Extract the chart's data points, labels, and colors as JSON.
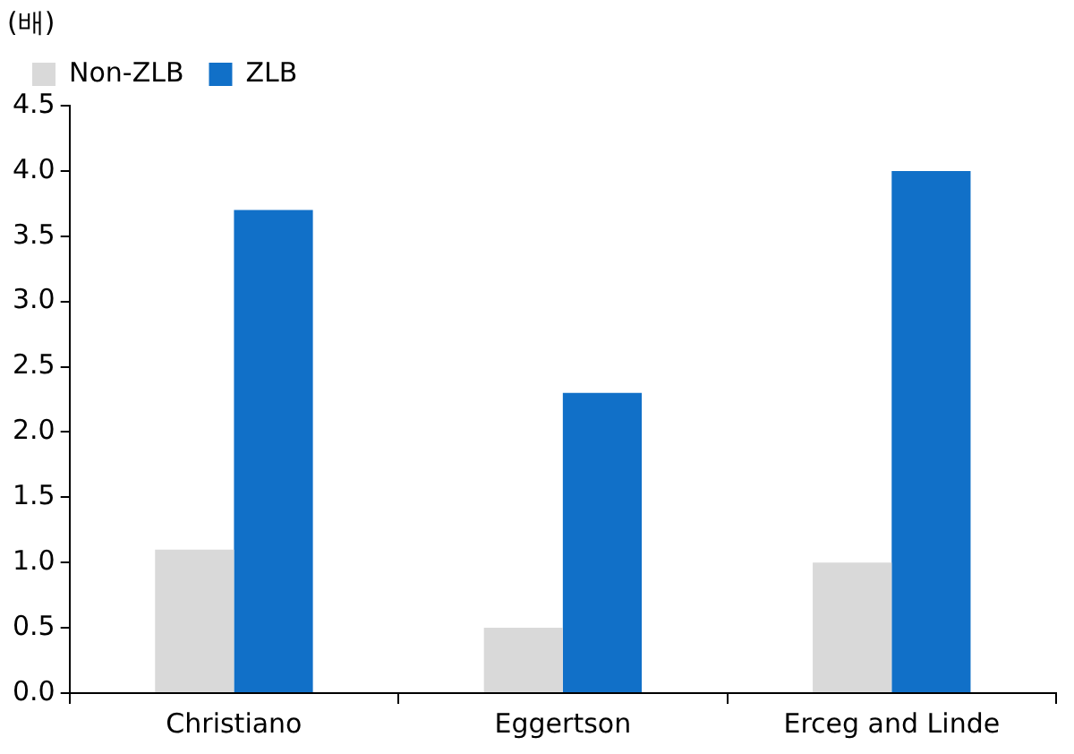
{
  "chart_data": {
    "type": "bar",
    "ylabel": "(배)",
    "categories": [
      "Christiano",
      "Eggertson",
      "Erceg and Linde"
    ],
    "series": [
      {
        "name": "Non-ZLB",
        "color": "#d9d9d9",
        "values": [
          1.1,
          0.5,
          1.0
        ]
      },
      {
        "name": "ZLB",
        "color": "#1170c8",
        "values": [
          3.7,
          2.3,
          4.0
        ]
      }
    ],
    "ylim": [
      0,
      4.5
    ],
    "yticks": [
      {
        "value": 0,
        "label": "0.0"
      },
      0.5,
      {
        "value": 1,
        "label": "1.0"
      },
      1.5,
      {
        "value": 2,
        "label": "2.0"
      },
      2.5,
      {
        "value": 3,
        "label": "3.0"
      },
      3.5,
      {
        "value": 4,
        "label": "4.0"
      },
      4.5
    ],
    "grid": false,
    "legend": "top left"
  }
}
